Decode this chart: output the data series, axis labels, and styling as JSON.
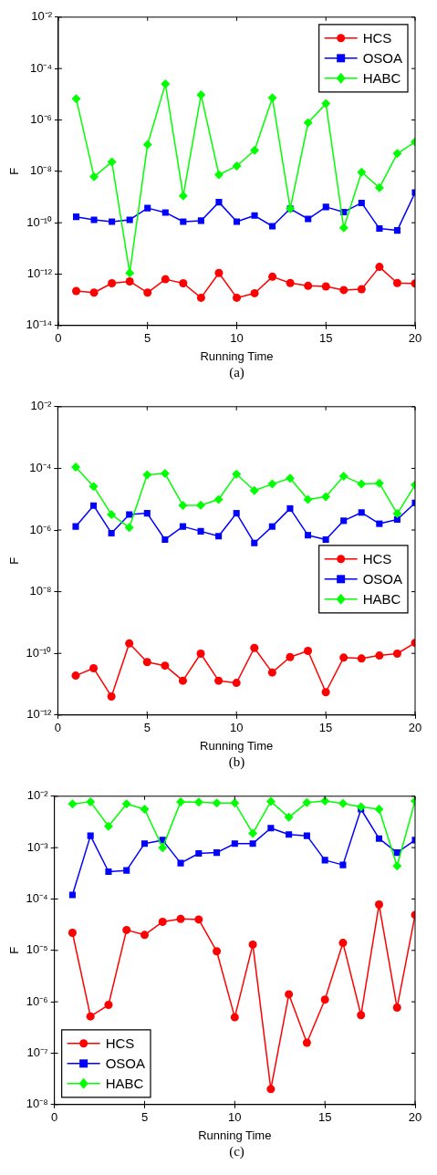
{
  "chart_data": [
    {
      "type": "line",
      "xlabel": "Running Time",
      "ylabel": "F",
      "annotations": [
        "(a)"
      ],
      "log": "y",
      "grid": false,
      "legend": "top right",
      "xlim": [
        0,
        20
      ],
      "xticks": [
        0,
        5,
        10,
        15,
        20
      ],
      "ylim": [
        1e-14,
        0.01
      ],
      "yticks": [
        {
          "value": 1e-14,
          "label": "10⁻¹⁴"
        },
        {
          "value": 1e-12,
          "label": "10⁻¹²"
        },
        {
          "value": 1e-10,
          "label": "10⁻¹⁰"
        },
        {
          "value": 1e-08,
          "label": "10⁻⁸"
        },
        {
          "value": 1e-06,
          "label": "10⁻⁶"
        },
        {
          "value": 0.0001,
          "label": "10⁻⁴"
        },
        {
          "value": 0.01,
          "label": "10⁻²"
        }
      ],
      "x": [
        1,
        2,
        3,
        4,
        5,
        6,
        7,
        8,
        9,
        10,
        11,
        12,
        13,
        14,
        15,
        16,
        17,
        18,
        19,
        20
      ],
      "series": [
        {
          "name": "HCS",
          "color": "#ff0000",
          "marker": "circle",
          "values": [
            2.2e-13,
            1.9e-13,
            4.4e-13,
            5.2e-13,
            1.9e-13,
            6.3e-13,
            4.4e-13,
            1.2e-13,
            1.1e-12,
            1.2e-13,
            1.8e-13,
            7.9e-13,
            4.5e-13,
            3.5e-13,
            3.3e-13,
            2.4e-13,
            2.6e-13,
            1.9e-12,
            4.5e-13,
            4.3e-13
          ]
        },
        {
          "name": "OSOA",
          "color": "#0000ff",
          "marker": "square",
          "values": [
            1.7e-10,
            1.3e-10,
            1.1e-10,
            1.3e-10,
            3.7e-10,
            2.5e-10,
            1.1e-10,
            1.2e-10,
            6.3e-10,
            1.1e-10,
            1.9e-10,
            7.3e-11,
            3.5e-10,
            1.4e-10,
            4.1e-10,
            2.6e-10,
            5.9e-10,
            5.9e-11,
            5e-11,
            1.5e-09
          ]
        },
        {
          "name": "HABC",
          "color": "#00ff00",
          "marker": "diamond",
          "values": [
            6.7e-06,
            6.2e-09,
            2.3e-08,
            1.1e-12,
            1.1e-07,
            2.5e-05,
            1.1e-09,
            9.5e-06,
            7.4e-09,
            1.6e-08,
            6.6e-08,
            7.2e-06,
            3.5e-10,
            7.8e-07,
            4.3e-06,
            6.3e-11,
            9.3e-09,
            2.3e-09,
            4.9e-08,
            1.4e-07
          ]
        }
      ]
    },
    {
      "type": "line",
      "xlabel": "Running Time",
      "ylabel": "F",
      "annotations": [
        "(b)"
      ],
      "log": "y",
      "grid": false,
      "legend": "right",
      "xlim": [
        0,
        20
      ],
      "xticks": [
        0,
        5,
        10,
        15,
        20
      ],
      "ylim": [
        1e-12,
        0.01
      ],
      "yticks": [
        {
          "value": 1e-12,
          "label": "10⁻¹²"
        },
        {
          "value": 1e-10,
          "label": "10⁻¹⁰"
        },
        {
          "value": 1e-08,
          "label": "10⁻⁸"
        },
        {
          "value": 1e-06,
          "label": "10⁻⁶"
        },
        {
          "value": 0.0001,
          "label": "10⁻⁴"
        },
        {
          "value": 0.01,
          "label": "10⁻²"
        }
      ],
      "x": [
        1,
        2,
        3,
        4,
        5,
        6,
        7,
        8,
        9,
        10,
        11,
        12,
        13,
        14,
        15,
        16,
        17,
        18,
        19,
        20
      ],
      "series": [
        {
          "name": "HCS",
          "color": "#ff0000",
          "marker": "circle",
          "values": [
            1.9e-11,
            3.3e-11,
            4e-12,
            2.1e-10,
            5.2e-11,
            4e-11,
            1.3e-11,
            9.8e-11,
            1.3e-11,
            1.1e-11,
            1.5e-10,
            2.4e-11,
            7.6e-11,
            1.2e-10,
            5.5e-12,
            7.3e-11,
            6.8e-11,
            8.5e-11,
            9.8e-11,
            2.2e-10
          ]
        },
        {
          "name": "OSOA",
          "color": "#0000ff",
          "marker": "square",
          "values": [
            1.3e-06,
            6.2e-06,
            7.9e-07,
            3.2e-06,
            3.5e-06,
            4.9e-07,
            1.3e-06,
            9.1e-07,
            6.3e-07,
            3.5e-06,
            3.8e-07,
            1.3e-06,
            5e-06,
            6.8e-07,
            4.9e-07,
            2e-06,
            3.7e-06,
            1.6e-06,
            2.2e-06,
            7.6e-06
          ]
        },
        {
          "name": "HABC",
          "color": "#00ff00",
          "marker": "diamond",
          "values": [
            0.00011,
            2.6e-05,
            3.2e-06,
            1.2e-06,
            6.2e-05,
            6.8e-05,
            6.3e-06,
            6.4e-06,
            9.8e-06,
            6.5e-05,
            1.9e-05,
            3.1e-05,
            4.8e-05,
            9.8e-06,
            1.2e-05,
            5.6e-05,
            3.1e-05,
            3.3e-05,
            3.4e-06,
            2.9e-05
          ]
        }
      ]
    },
    {
      "type": "line",
      "xlabel": "Running Time",
      "ylabel": "F",
      "annotations": [
        "(c)"
      ],
      "log": "y",
      "grid": false,
      "legend": "bottom left",
      "xlim": [
        0,
        20
      ],
      "xticks": [
        0,
        5,
        10,
        15,
        20
      ],
      "ylim": [
        1e-08,
        0.01
      ],
      "yticks": [
        {
          "value": 1e-08,
          "label": "10⁻⁸"
        },
        {
          "value": 1e-07,
          "label": "10⁻⁷"
        },
        {
          "value": 1e-06,
          "label": "10⁻⁶"
        },
        {
          "value": 1e-05,
          "label": "10⁻⁵"
        },
        {
          "value": 0.0001,
          "label": "10⁻⁴"
        },
        {
          "value": 0.001,
          "label": "10⁻³"
        },
        {
          "value": 0.01,
          "label": "10⁻²"
        }
      ],
      "x": [
        1,
        2,
        3,
        4,
        5,
        6,
        7,
        8,
        9,
        10,
        11,
        12,
        13,
        14,
        15,
        16,
        17,
        18,
        19,
        20
      ],
      "series": [
        {
          "name": "HCS",
          "color": "#ff0000",
          "marker": "circle",
          "values": [
            2.2e-05,
            5.2e-07,
            8.7e-07,
            2.5e-05,
            2e-05,
            3.6e-05,
            4.1e-05,
            4e-05,
            9.6e-06,
            5e-07,
            1.3e-05,
            2e-08,
            1.4e-06,
            1.6e-07,
            1.1e-06,
            1.4e-05,
            5.5e-07,
            7.8e-05,
            7.7e-07,
            4.9e-05
          ]
        },
        {
          "name": "OSOA",
          "color": "#0000ff",
          "marker": "square",
          "values": [
            0.00012,
            0.0017,
            0.00034,
            0.00036,
            0.0012,
            0.0014,
            0.0005,
            0.00077,
            0.0008,
            0.0012,
            0.0012,
            0.0024,
            0.0018,
            0.0017,
            0.00057,
            0.00046,
            0.0056,
            0.0015,
            0.0008,
            0.0014
          ]
        },
        {
          "name": "HABC",
          "color": "#00ff00",
          "marker": "diamond",
          "values": [
            0.0071,
            0.0078,
            0.0026,
            0.0071,
            0.0056,
            0.001,
            0.0078,
            0.0077,
            0.0074,
            0.0074,
            0.0019,
            0.0079,
            0.0039,
            0.0075,
            0.0081,
            0.0072,
            0.0062,
            0.0056,
            0.00044,
            0.0081
          ]
        }
      ]
    }
  ]
}
